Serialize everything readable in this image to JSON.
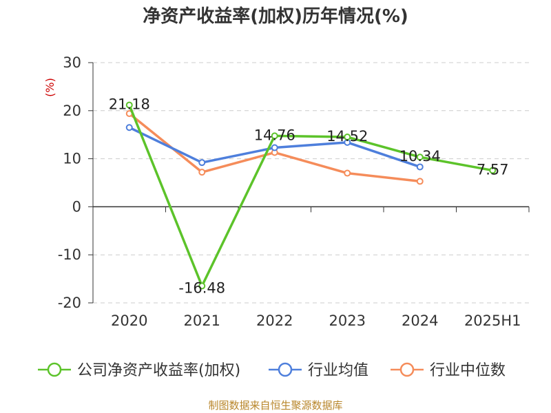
{
  "chart_data": {
    "type": "line",
    "title": "净资产收益率(加权)历年情况(%)",
    "ylabel": "(%)",
    "categories": [
      "2020",
      "2021",
      "2022",
      "2023",
      "2024",
      "2025H1"
    ],
    "ylim": [
      -20,
      30
    ],
    "yticks": [
      "30",
      "20",
      "10",
      "0",
      "-10",
      "-20"
    ],
    "grid": true,
    "legend_position": "bottom",
    "series": [
      {
        "name": "公司净资产收益率(加权)",
        "color": "#5cc32a",
        "values": [
          21.18,
          -16.48,
          14.76,
          14.52,
          10.34,
          7.57
        ],
        "labels": [
          "21.18",
          "-16.48",
          "14.76",
          "14.52",
          "10.34",
          "7.57"
        ]
      },
      {
        "name": "行业均值",
        "color": "#4e7fdc",
        "values": [
          16.5,
          9.2,
          12.3,
          13.4,
          8.3,
          null
        ]
      },
      {
        "name": "行业中位数",
        "color": "#f58c5a",
        "values": [
          19.4,
          7.2,
          11.3,
          7.0,
          5.3,
          null
        ]
      }
    ]
  },
  "source": "制图数据来自恒生聚源数据库"
}
